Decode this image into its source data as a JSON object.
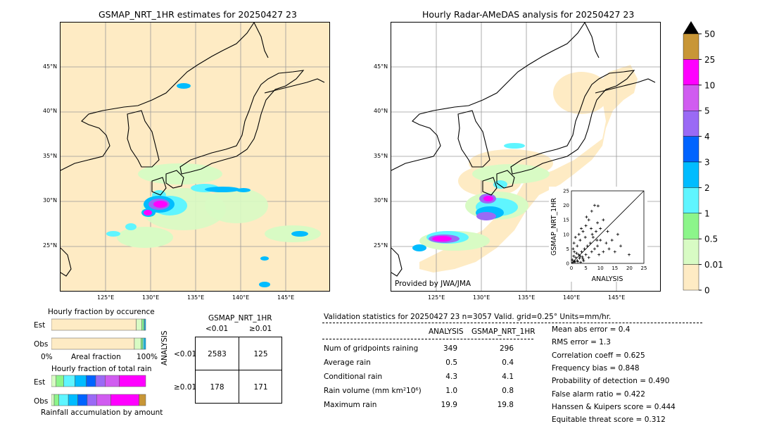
{
  "left_map": {
    "title": "GSMAP_NRT_1HR estimates for 20250427 23",
    "lat_labels": [
      "45°N",
      "40°N",
      "35°N",
      "30°N",
      "25°N"
    ],
    "lon_labels": [
      "125°E",
      "130°E",
      "135°E",
      "140°E",
      "145°E"
    ]
  },
  "right_map": {
    "title": "Hourly Radar-AMeDAS analysis for 20250427 23",
    "lat_labels": [
      "45°N",
      "40°N",
      "35°N",
      "30°N",
      "25°N"
    ],
    "lon_labels": [
      "125°E",
      "130°E",
      "135°E",
      "140°E",
      "145°E"
    ],
    "credit": "Provided by JWA/JMA"
  },
  "colorbar": {
    "ticks": [
      "50",
      "25",
      "10",
      "5",
      "4",
      "3",
      "2",
      "1",
      "0.5",
      "0.01",
      "0"
    ],
    "colors": [
      "#c89637",
      "#ff00ff",
      "#d05cf0",
      "#9a6af5",
      "#0064ff",
      "#00bcff",
      "#5ff5ff",
      "#8cf58a",
      "#d8fbc4",
      "#feebc4"
    ],
    "extend_color": "#000000"
  },
  "scatter": {
    "xlabel": "ANALYSIS",
    "ylabel": "GSMAP_NRT_1HR",
    "ticks": [
      "0",
      "5",
      "10",
      "15",
      "20",
      "25"
    ]
  },
  "occurrence": {
    "title": "Hourly fraction by occurence",
    "est_label": "Est",
    "obs_label": "Obs",
    "axis_left": "0%",
    "axis_mid": "Areal fraction",
    "axis_right": "100%"
  },
  "total_rain": {
    "title": "Hourly fraction of total rain",
    "est_label": "Est",
    "obs_label": "Obs",
    "footer": "Rainfall accumulation by amount"
  },
  "contingency": {
    "header": "GSMAP_NRT_1HR",
    "col1": "<0.01",
    "col2": "≥0.01",
    "side_label": "ANALYSIS",
    "row1": "<0.01",
    "row2": "≥0.01",
    "cells": [
      "2583",
      "125",
      "178",
      "171"
    ]
  },
  "validation": {
    "header": "Validation statistics for 20250427 23  n=3057 Valid. grid=0.25° Units=mm/hr.",
    "col_analysis": "ANALYSIS",
    "col_gsmap": "GSMAP_NRT_1HR",
    "rows": [
      {
        "label": "Num of gridpoints raining",
        "analysis": "349",
        "gsmap": "296"
      },
      {
        "label": "Average rain",
        "analysis": "0.5",
        "gsmap": "0.4"
      },
      {
        "label": "Conditional rain",
        "analysis": "4.3",
        "gsmap": "4.1"
      },
      {
        "label": "Rain volume (mm km²10⁶)",
        "analysis": "1.0",
        "gsmap": "0.8"
      },
      {
        "label": "Maximum rain",
        "analysis": "19.9",
        "gsmap": "19.8"
      }
    ],
    "scores": [
      "Mean abs error =    0.4",
      "RMS error =    1.3",
      "Correlation coeff =  0.625",
      "Frequency bias =  0.848",
      "Probability of detection =  0.490",
      "False alarm ratio =  0.422",
      "Hanssen & Kuipers score =  0.444",
      "Equitable threat score =  0.312"
    ]
  },
  "chart_data": [
    {
      "type": "scatter",
      "title": "",
      "xlabel": "ANALYSIS",
      "ylabel": "GSMAP_NRT_1HR",
      "xlim": [
        0,
        25
      ],
      "ylim": [
        0,
        25
      ],
      "points": [
        [
          0.5,
          0.3
        ],
        [
          1,
          0.8
        ],
        [
          1.5,
          2
        ],
        [
          2,
          1
        ],
        [
          2.5,
          3
        ],
        [
          3,
          2.5
        ],
        [
          3.5,
          4
        ],
        [
          4,
          1.5
        ],
        [
          4.5,
          5
        ],
        [
          5,
          3
        ],
        [
          5.5,
          6
        ],
        [
          6,
          2
        ],
        [
          6.5,
          7
        ],
        [
          7,
          4
        ],
        [
          7.5,
          9
        ],
        [
          8,
          5
        ],
        [
          8.5,
          11
        ],
        [
          9,
          6
        ],
        [
          9.5,
          3
        ],
        [
          10,
          8
        ],
        [
          11,
          4
        ],
        [
          12,
          7
        ],
        [
          13,
          5
        ],
        [
          14,
          8
        ],
        [
          15,
          4
        ],
        [
          16,
          10
        ],
        [
          17,
          6
        ],
        [
          19.9,
          3
        ],
        [
          1,
          4
        ],
        [
          2,
          6
        ],
        [
          3,
          8
        ],
        [
          4,
          11
        ],
        [
          5,
          13
        ],
        [
          6,
          15
        ],
        [
          7,
          18
        ],
        [
          8,
          20
        ],
        [
          9,
          14
        ],
        [
          10,
          12
        ],
        [
          0.3,
          1.2
        ],
        [
          0.8,
          2.5
        ],
        [
          1.2,
          0.5
        ],
        [
          1.8,
          3.5
        ],
        [
          2.2,
          0.6
        ],
        [
          2.8,
          1.8
        ],
        [
          3.2,
          0.4
        ],
        [
          3.8,
          2.2
        ],
        [
          4.2,
          0.9
        ],
        [
          0.6,
          5
        ],
        [
          0.9,
          7
        ],
        [
          1.4,
          9
        ],
        [
          2.6,
          10
        ],
        [
          3.4,
          12
        ],
        [
          4.8,
          9
        ],
        [
          5.2,
          16
        ],
        [
          6.8,
          12
        ],
        [
          7.2,
          10
        ],
        [
          8.8,
          8
        ],
        [
          9.2,
          19.8
        ],
        [
          11,
          15
        ],
        [
          12.5,
          11
        ]
      ]
    },
    {
      "type": "bar",
      "title": "Hourly fraction by occurence",
      "categories": [
        "Est",
        "Obs"
      ],
      "series": [
        {
          "name": "0",
          "values": [
            0.9,
            0.88
          ]
        },
        {
          "name": "0.01",
          "values": [
            0.06,
            0.07
          ]
        },
        {
          "name": "0.5",
          "values": [
            0.02,
            0.02
          ]
        },
        {
          "name": "1",
          "values": [
            0.01,
            0.015
          ]
        },
        {
          "name": "2",
          "values": [
            0.01,
            0.015
          ]
        }
      ]
    },
    {
      "type": "bar",
      "title": "Hourly fraction of total rain",
      "categories": [
        "Est",
        "Obs"
      ],
      "series": [
        {
          "name": "0.01",
          "values": [
            0.05,
            0.03
          ]
        },
        {
          "name": "0.5",
          "values": [
            0.08,
            0.05
          ]
        },
        {
          "name": "1",
          "values": [
            0.12,
            0.1
          ]
        },
        {
          "name": "2",
          "values": [
            0.12,
            0.1
          ]
        },
        {
          "name": "3",
          "values": [
            0.1,
            0.1
          ]
        },
        {
          "name": "4",
          "values": [
            0.1,
            0.1
          ]
        },
        {
          "name": "5",
          "values": [
            0.15,
            0.15
          ]
        },
        {
          "name": "10",
          "values": [
            0.28,
            0.3
          ]
        },
        {
          "name": "25",
          "values": [
            0.0,
            0.07
          ]
        }
      ]
    }
  ]
}
